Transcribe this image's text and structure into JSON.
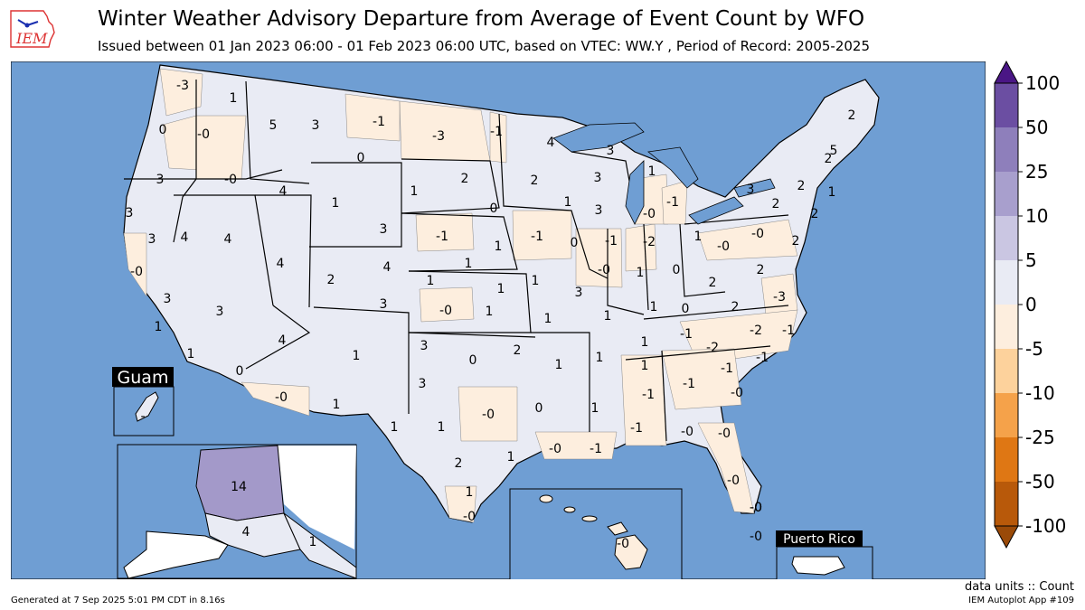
{
  "header": {
    "logo_text": "IEM",
    "title": "Winter Weather Advisory Departure from Average of Event Count by WFO",
    "subtitle": "Issued between 01 Jan 2023 06:00 - 01 Feb 2023 06:00 UTC, based on VTEC: WW.Y  , Period of Record: 2005-2025"
  },
  "colors": {
    "ocean": "#6f9ed3",
    "land": "#ffffff",
    "bin_0_5": "#e9ebf4",
    "bin_neg5_0": "#fdeede",
    "bin_10_25": "#a399c9"
  },
  "colorbar": {
    "ticks": [
      "100",
      "50",
      "25",
      "10",
      "5",
      "0",
      "-5",
      "-10",
      "-25",
      "-50",
      "-100"
    ],
    "colors": [
      "#4a1685",
      "#6b4ea2",
      "#8e7fbb",
      "#a89fcd",
      "#cac6e2",
      "#e9ebf4",
      "#fdeede",
      "#fdd29c",
      "#f5a24a",
      "#df7714",
      "#b8590a",
      "#9a4a08"
    ]
  },
  "insets": {
    "guam": "Guam",
    "puerto_rico": "Puerto Rico"
  },
  "wfo_labels": [
    {
      "id": "sew",
      "v": "-3"
    },
    {
      "id": "otx",
      "v": "1"
    },
    {
      "id": "pqr",
      "v": "0"
    },
    {
      "id": "pdt",
      "v": "-0"
    },
    {
      "id": "mso",
      "v": "5"
    },
    {
      "id": "tfx",
      "v": "3"
    },
    {
      "id": "ggw",
      "v": "-1"
    },
    {
      "id": "bis",
      "v": "-3"
    },
    {
      "id": "fgf",
      "v": "-1"
    },
    {
      "id": "dlh",
      "v": "4"
    },
    {
      "id": "mfr",
      "v": "3"
    },
    {
      "id": "boi",
      "v": "-0"
    },
    {
      "id": "pih",
      "v": "4"
    },
    {
      "id": "byz",
      "v": "0"
    },
    {
      "id": "unr",
      "v": "1"
    },
    {
      "id": "abr",
      "v": "2"
    },
    {
      "id": "mpx",
      "v": "2"
    },
    {
      "id": "grb",
      "v": "3"
    },
    {
      "id": "mqt",
      "v": "3"
    },
    {
      "id": "apx",
      "v": "1"
    },
    {
      "id": "eka",
      "v": "3"
    },
    {
      "id": "lkn",
      "v": "4"
    },
    {
      "id": "sto",
      "v": "3"
    },
    {
      "id": "rev",
      "v": "4"
    },
    {
      "id": "riw",
      "v": "1"
    },
    {
      "id": "cys",
      "v": "3"
    },
    {
      "id": "fsd",
      "v": "0"
    },
    {
      "id": "arx",
      "v": "1"
    },
    {
      "id": "mkx",
      "v": "3"
    },
    {
      "id": "grr",
      "v": "-0"
    },
    {
      "id": "dtx",
      "v": "-1"
    },
    {
      "id": "mtr",
      "v": "-0"
    },
    {
      "id": "slc",
      "v": "4"
    },
    {
      "id": "gjt",
      "v": "2"
    },
    {
      "id": "bou",
      "v": "4"
    },
    {
      "id": "lbf",
      "v": "-1"
    },
    {
      "id": "oax",
      "v": "1"
    },
    {
      "id": "dmx",
      "v": "-1"
    },
    {
      "id": "dvn",
      "v": "0"
    },
    {
      "id": "lot",
      "v": "-1"
    },
    {
      "id": "iwx",
      "v": "-2"
    },
    {
      "id": "cle",
      "v": "1"
    },
    {
      "id": "pbz",
      "v": "-0"
    },
    {
      "id": "ctp",
      "v": "-0"
    },
    {
      "id": "buf",
      "v": "3"
    },
    {
      "id": "bgm",
      "v": "2"
    },
    {
      "id": "aly",
      "v": "2"
    },
    {
      "id": "btv",
      "v": "2"
    },
    {
      "id": "gyx",
      "v": "5"
    },
    {
      "id": "car",
      "v": "2"
    },
    {
      "id": "box",
      "v": "1"
    },
    {
      "id": "okx",
      "v": "2"
    },
    {
      "id": "phi",
      "v": "2"
    },
    {
      "id": "gld",
      "v": "1"
    },
    {
      "id": "gid",
      "v": "1"
    },
    {
      "id": "top",
      "v": "1"
    },
    {
      "id": "eax",
      "v": "1"
    },
    {
      "id": "ilx",
      "v": "-0"
    },
    {
      "id": "ind",
      "v": "1"
    },
    {
      "id": "iln",
      "v": "0"
    },
    {
      "id": "rlx",
      "v": "2"
    },
    {
      "id": "lwx",
      "v": "2"
    },
    {
      "id": "hnx",
      "v": "3"
    },
    {
      "id": "vef",
      "v": "3"
    },
    {
      "id": "fgz",
      "v": "4"
    },
    {
      "id": "pub",
      "v": "3"
    },
    {
      "id": "ddc",
      "v": "-0"
    },
    {
      "id": "ict",
      "v": "1"
    },
    {
      "id": "sgf",
      "v": "1"
    },
    {
      "id": "lsx",
      "v": "3"
    },
    {
      "id": "pah",
      "v": "1"
    },
    {
      "id": "lmk",
      "v": "1"
    },
    {
      "id": "jkl",
      "v": "0"
    },
    {
      "id": "rnk",
      "v": "2"
    },
    {
      "id": "akq",
      "v": "-3"
    },
    {
      "id": "lox",
      "v": "1"
    },
    {
      "id": "sgx",
      "v": "1"
    },
    {
      "id": "psr",
      "v": "0"
    },
    {
      "id": "abq",
      "v": "1"
    },
    {
      "id": "ama",
      "v": "3"
    },
    {
      "id": "oun",
      "v": "0"
    },
    {
      "id": "tsa",
      "v": "2"
    },
    {
      "id": "lzk",
      "v": "1"
    },
    {
      "id": "meg",
      "v": "1"
    },
    {
      "id": "ohx",
      "v": "1"
    },
    {
      "id": "mrx",
      "v": "-1"
    },
    {
      "id": "gsp",
      "v": "-2"
    },
    {
      "id": "rah",
      "v": "-2"
    },
    {
      "id": "mhx",
      "v": "-1"
    },
    {
      "id": "twc",
      "v": "-0"
    },
    {
      "id": "epz",
      "v": "1"
    },
    {
      "id": "lub",
      "v": "3"
    },
    {
      "id": "maf",
      "v": "1"
    },
    {
      "id": "sjt",
      "v": "1"
    },
    {
      "id": "fwd",
      "v": "-0"
    },
    {
      "id": "shv",
      "v": "0"
    },
    {
      "id": "jan",
      "v": "1"
    },
    {
      "id": "bmx",
      "v": "-1"
    },
    {
      "id": "ffc",
      "v": "-1"
    },
    {
      "id": "cae",
      "v": "-1"
    },
    {
      "id": "ilm",
      "v": "-1"
    },
    {
      "id": "hun",
      "v": "1"
    },
    {
      "id": "chs",
      "v": "-0"
    },
    {
      "id": "mob",
      "v": "-1"
    },
    {
      "id": "tae",
      "v": "-0"
    },
    {
      "id": "jax",
      "v": "-0"
    },
    {
      "id": "lch",
      "v": "-0"
    },
    {
      "id": "lix",
      "v": "-1"
    },
    {
      "id": "ewx",
      "v": "2"
    },
    {
      "id": "hgx",
      "v": "1"
    },
    {
      "id": "crp",
      "v": "1"
    },
    {
      "id": "bro",
      "v": "-0"
    },
    {
      "id": "mlb",
      "v": "-0"
    },
    {
      "id": "tbw",
      "v": "-0"
    },
    {
      "id": "mfl",
      "v": "-0"
    },
    {
      "id": "key",
      "v": "-0"
    },
    {
      "id": "afg",
      "v": "14"
    },
    {
      "id": "afc",
      "v": "4"
    },
    {
      "id": "ajk",
      "v": "1"
    },
    {
      "id": "hfo",
      "v": "-0"
    },
    {
      "id": "gum",
      "v": "-"
    }
  ],
  "units": "data units :: Count",
  "footer": {
    "generated": "Generated at 7 Sep 2025 5:01 PM CDT in 8.16s",
    "app": "IEM Autoplot App #109"
  }
}
